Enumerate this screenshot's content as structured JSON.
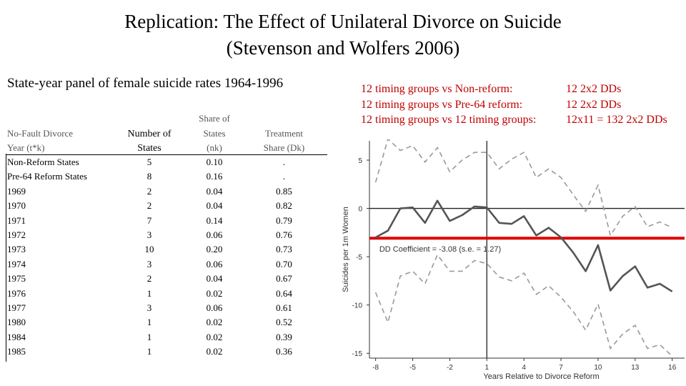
{
  "title": {
    "line1": "Replication: The Effect of Unilateral Divorce on Suicide",
    "line2": "(Stevenson and Wolfers 2006)"
  },
  "subtitle": "State-year panel of female suicide rates 1964-1996",
  "comparisons": [
    {
      "label": "12 timing groups vs Non-reform:",
      "value": "12 2x2 DDs"
    },
    {
      "label": "12 timing groups vs Pre-64 reform:",
      "value": "12 2x2 DDs"
    },
    {
      "label": "12 timing groups vs 12 timing groups:",
      "value": "12x11 = 132 2x2 DDs"
    }
  ],
  "table": {
    "headers": {
      "col1_line1": "No-Fault Divorce",
      "col1_line2": "Year (t*k)",
      "col2_line1": "Number of",
      "col2_line2": "States",
      "col3_line1": "Share of",
      "col3_line2": "States",
      "col3_line3": "(nk)",
      "col4_line1": "Treatment",
      "col4_line2": "Share (Dk)"
    },
    "rows": [
      {
        "year": "Non-Reform States",
        "n": "5",
        "share": "0.10",
        "treat": "."
      },
      {
        "year": "Pre-64 Reform States",
        "n": "8",
        "share": "0.16",
        "treat": "."
      },
      {
        "year": "1969",
        "n": "2",
        "share": "0.04",
        "treat": "0.85"
      },
      {
        "year": "1970",
        "n": "2",
        "share": "0.04",
        "treat": "0.82"
      },
      {
        "year": "1971",
        "n": "7",
        "share": "0.14",
        "treat": "0.79"
      },
      {
        "year": "1972",
        "n": "3",
        "share": "0.06",
        "treat": "0.76"
      },
      {
        "year": "1973",
        "n": "10",
        "share": "0.20",
        "treat": "0.73"
      },
      {
        "year": "1974",
        "n": "3",
        "share": "0.06",
        "treat": "0.70"
      },
      {
        "year": "1975",
        "n": "2",
        "share": "0.04",
        "treat": "0.67"
      },
      {
        "year": "1976",
        "n": "1",
        "share": "0.02",
        "treat": "0.64"
      },
      {
        "year": "1977",
        "n": "3",
        "share": "0.06",
        "treat": "0.61"
      },
      {
        "year": "1980",
        "n": "1",
        "share": "0.02",
        "treat": "0.52"
      },
      {
        "year": "1984",
        "n": "1",
        "share": "0.02",
        "treat": "0.39"
      },
      {
        "year": "1985",
        "n": "1",
        "share": "0.02",
        "treat": "0.36"
      }
    ]
  },
  "chart_data": {
    "type": "line",
    "xlabel": "Years Relative to Divorce Reform",
    "ylabel": "Suicides per 1m Women",
    "xlim": [
      -8.5,
      17
    ],
    "ylim": [
      -15.5,
      7
    ],
    "xticks": [
      -8,
      -5,
      -2,
      1,
      4,
      7,
      10,
      13,
      16
    ],
    "yticks": [
      5,
      0,
      -5,
      -10,
      -15
    ],
    "annotation": "DD Coefficient = -3.08 (s.e. = 1.27)",
    "dd_coefficient": -3.08,
    "reference_lines": {
      "horizontal_zero": true,
      "vertical_at_x": 1
    },
    "x": [
      -8,
      -7,
      -6,
      -5,
      -4,
      -3,
      -2,
      -1,
      0,
      1,
      2,
      3,
      4,
      5,
      6,
      7,
      8,
      9,
      10,
      11,
      12,
      13,
      14,
      15,
      16
    ],
    "series": [
      {
        "style": "solid",
        "values": [
          -3.0,
          -2.3,
          0.0,
          0.1,
          -1.5,
          0.8,
          -1.3,
          -0.7,
          0.2,
          0.1,
          -1.5,
          -1.6,
          -0.8,
          -2.8,
          -2.0,
          -3.0,
          -4.6,
          -6.5,
          -3.8,
          -8.5,
          -7.0,
          -6.0,
          -8.2,
          -7.8,
          -8.6
        ]
      },
      {
        "style": "dashed",
        "values": [
          2.7,
          7.2,
          6.0,
          6.5,
          4.8,
          6.3,
          3.8,
          5.0,
          5.8,
          5.8,
          4.1,
          5.1,
          5.8,
          3.2,
          4.1,
          3.2,
          1.4,
          -0.3,
          2.4,
          -2.8,
          -0.8,
          0.2,
          -1.9,
          -1.4,
          -2.0
        ]
      },
      {
        "style": "dashed",
        "values": [
          -8.7,
          -11.8,
          -7.0,
          -6.5,
          -7.8,
          -4.8,
          -6.5,
          -6.5,
          -5.4,
          -5.7,
          -7.1,
          -7.5,
          -6.7,
          -8.9,
          -8.0,
          -9.2,
          -10.7,
          -12.6,
          -9.9,
          -14.5,
          -13.0,
          -12.1,
          -14.5,
          -14.1,
          -15.3
        ]
      }
    ],
    "colors": {
      "dd_line": "#e00000",
      "series": "#555555",
      "dashed": "#999999",
      "axis": "#333333"
    }
  }
}
